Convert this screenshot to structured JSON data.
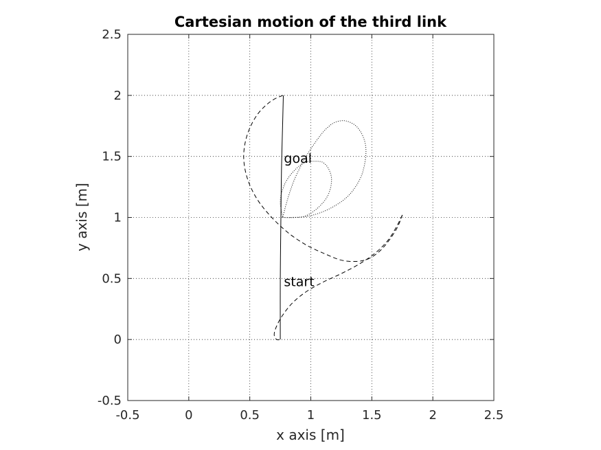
{
  "chart_data": {
    "type": "line",
    "title": "Cartesian motion of the third link",
    "xlabel": "x axis [m]",
    "ylabel": "y axis [m]",
    "xlim": [
      -0.5,
      2.5
    ],
    "ylim": [
      -0.5,
      2.5
    ],
    "xticks": [
      -0.5,
      0,
      0.5,
      1,
      1.5,
      2,
      2.5
    ],
    "yticks": [
      -0.5,
      0,
      0.5,
      1,
      1.5,
      2,
      2.5
    ],
    "xtick_labels": [
      "-0.5",
      "0",
      "0.5",
      "1",
      "1.5",
      "2",
      "2.5"
    ],
    "ytick_labels": [
      "-0.5",
      "0",
      "0.5",
      "1",
      "1.5",
      "2",
      "2.5"
    ],
    "grid": true,
    "annotations": [
      {
        "text": "goal",
        "x": 0.78,
        "y": 1.48
      },
      {
        "text": "start",
        "x": 0.78,
        "y": 0.47
      }
    ],
    "series": [
      {
        "style": "solid",
        "x": [
          0.75,
          0.75,
          0.755,
          0.76,
          0.77,
          0.775
        ],
        "y": [
          0.0,
          0.5,
          1.0,
          1.4,
          1.8,
          2.0
        ]
      },
      {
        "style": "dashed",
        "x": [
          0.77,
          0.67,
          0.56,
          0.48,
          0.45,
          0.48,
          0.56,
          0.68,
          0.82,
          0.97,
          1.12,
          1.25,
          1.37,
          1.47,
          1.56,
          1.64,
          1.71,
          1.75
        ],
        "y": [
          2.0,
          1.95,
          1.84,
          1.68,
          1.5,
          1.32,
          1.15,
          1.0,
          0.87,
          0.77,
          0.7,
          0.65,
          0.64,
          0.66,
          0.72,
          0.81,
          0.92,
          1.02
        ]
      },
      {
        "style": "dashed",
        "x": [
          1.75,
          1.7,
          1.63,
          1.53,
          1.4,
          1.25,
          1.1,
          0.96,
          0.85,
          0.77,
          0.72,
          0.7,
          0.72,
          0.75
        ],
        "y": [
          1.02,
          0.92,
          0.81,
          0.71,
          0.62,
          0.54,
          0.47,
          0.39,
          0.3,
          0.2,
          0.11,
          0.04,
          0.0,
          0.0
        ]
      },
      {
        "style": "dotted",
        "x": [
          0.77,
          0.84,
          0.95,
          1.06,
          1.14,
          1.17,
          1.15,
          1.1,
          1.03,
          0.95,
          0.87,
          0.8,
          0.76,
          0.75,
          0.76,
          0.77
        ],
        "y": [
          1.0,
          1.0,
          1.01,
          1.08,
          1.18,
          1.3,
          1.39,
          1.45,
          1.46,
          1.45,
          1.39,
          1.3,
          1.2,
          1.12,
          1.05,
          1.0
        ]
      },
      {
        "style": "dotted",
        "x": [
          0.77,
          0.88,
          1.02,
          1.17,
          1.31,
          1.41,
          1.45,
          1.44,
          1.38,
          1.29,
          1.2,
          1.12,
          1.04,
          0.95,
          0.87,
          0.81,
          0.77
        ],
        "y": [
          1.0,
          1.0,
          1.02,
          1.08,
          1.18,
          1.33,
          1.5,
          1.63,
          1.74,
          1.79,
          1.78,
          1.72,
          1.62,
          1.48,
          1.32,
          1.15,
          1.0
        ]
      }
    ]
  }
}
